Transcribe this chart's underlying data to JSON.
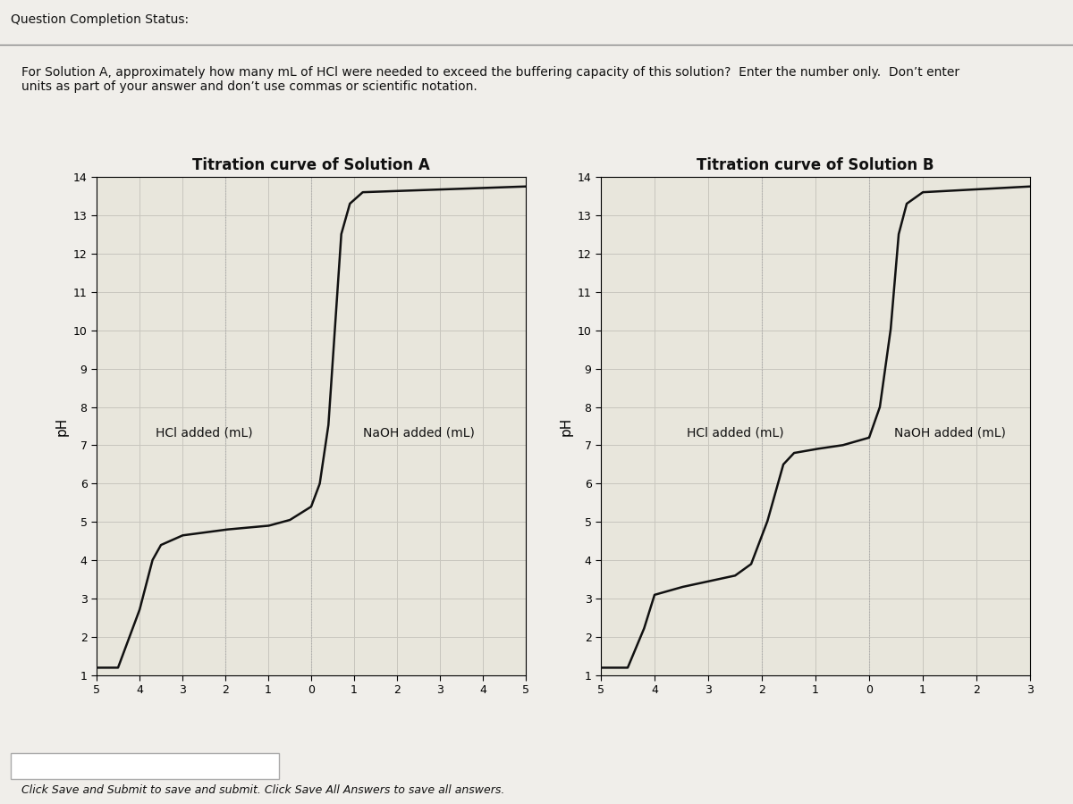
{
  "title_A": "Titration curve of Solution A",
  "title_B": "Titration curve of Solution B",
  "ylabel": "pH",
  "xlabel_hcl": "HCl added (mL)",
  "xlabel_naoh": "NaOH added (mL)",
  "page_title": "Question Completion Status:",
  "question_line1": "For Solution A, approximately how many mL of HCl were needed to exceed the buffering capacity of this solution?  Enter the number only.  Don’t enter",
  "question_line2": "units as part of your answer and don’t use commas or scientific notation.",
  "footer_text": "Click Save and Submit to save and submit. Click Save All Answers to save all answers.",
  "page_bg": "#e8e6e0",
  "content_bg": "#f0eeea",
  "plot_bg": "#e8e6dc",
  "grid_color": "#c8c6be",
  "curve_color": "#111111",
  "vline_color": "#aaaaaa",
  "title_color": "#111111",
  "text_color": "#111111",
  "ylim_min": 1,
  "ylim_max": 14,
  "yticks": [
    1,
    2,
    3,
    4,
    5,
    6,
    7,
    8,
    9,
    10,
    11,
    12,
    13,
    14
  ],
  "xticks_A": [
    -5,
    -4,
    -3,
    -2,
    -1,
    0,
    1,
    2,
    3,
    4,
    5
  ],
  "xtick_labels_A": [
    "5",
    "4",
    "3",
    "2",
    "1",
    "0",
    "1",
    "2",
    "3",
    "4",
    "5"
  ],
  "xticks_B": [
    -5,
    -4,
    -3,
    -2,
    -1,
    0,
    1,
    2,
    3
  ],
  "xtick_labels_B": [
    "5",
    "4",
    "3",
    "2",
    "1",
    "0",
    "1",
    "2",
    "3"
  ],
  "xlim_A_min": -5,
  "xlim_A_max": 5,
  "xlim_B_min": -5,
  "xlim_B_max": 3
}
